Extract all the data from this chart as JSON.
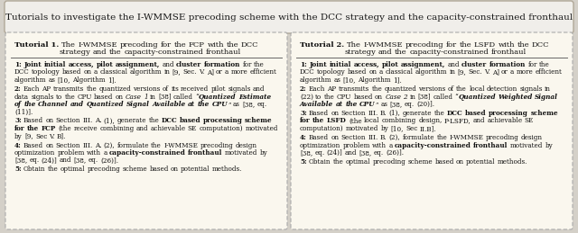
{
  "fig_bg": "#d4d0c8",
  "title_box_bg": "#f0eeea",
  "title_box_edge": "#b0a898",
  "tutorial_box_bg": "#faf7ee",
  "tutorial_box_edge": "#aaaaaa",
  "title": "Tutorials to investigate the I-WMMSE precoding scheme with the DCC strategy and the capacity-constrained fronthaul",
  "title_fontsize": 7.5,
  "header_fontsize": 6.0,
  "content_fontsize": 5.2,
  "box1_header_bold": "Tutorial 1.",
  "box1_header_rest": " The I-WMMSE precoding for the FCP with the DCC strategy and the capacity-constrained fronthaul",
  "box2_header_bold": "Tutorial 2.",
  "box2_header_rest": " The I-WMMSE precoding for the LSFD with the DCC strategy and the capacity-constrained fronthaul",
  "box1_lines": [
    [
      "b",
      "1: Joint initial access, pilot assignment,",
      "n",
      " and ",
      "b",
      "cluster formation",
      "n",
      " for the DCC topology based on a classical algorithm in [9, Sec. V. A] or a more efficient algorithm as [10, Algorithm 1]."
    ],
    [
      "b",
      "2:",
      "n",
      " Each AP transmits the quantized versions of its received pilot signals and data signals to the CPU based on ",
      "i",
      "Case 1",
      "n",
      " in [38] called “",
      "bi",
      "Quantized Estimate of the Channel and Quantized Signal Available at the CPU",
      "n",
      "” as [38, eq. (11)]."
    ],
    [
      "b",
      "3:",
      "n",
      " Based on Section III. A. (1), generate the ",
      "b",
      "DCC based processing scheme for the FCP",
      "n",
      " (the receive combining and achievable SE computation) motivated by [9, Sec V. B]."
    ],
    [
      "b",
      "4:",
      "n",
      " Based on Section III. A. (2), formulate the I-WMMSE precoding design optimization problem with a ",
      "b",
      "capacity-constrained fronthaul",
      "n",
      " motivated by [38, eq. (24)] and [38, eq. (26)]."
    ],
    [
      "b",
      "5:",
      "n",
      " Obtain the optimal precoding scheme based on potential methods."
    ]
  ],
  "box2_lines": [
    [
      "b",
      "1: Joint initial access, pilot assignment,",
      "n",
      " and ",
      "b",
      "cluster formation",
      "n",
      " for the DCC topology based on a classical algorithm in [9, Sec. V. A] or a more efficient algorithm as [10, Algorithm 1]."
    ],
    [
      "b",
      "2:",
      "n",
      " Each AP transmits the quantized versions of the local detection signals in (22) to the CPU based on ",
      "i",
      "Case 2",
      "n",
      " in [38] called “",
      "bi",
      "Quantized Weighted Signal Available at the CPU",
      "n",
      "” as [38, eq. (20)]."
    ],
    [
      "b",
      "3:",
      "n",
      " Based on Section III. B. (1), generate the ",
      "b",
      "DCC based processing scheme for the LSFD",
      "n",
      " (the local combining design, P-LSFD, and achievable SE computation) motivated by [10, Sec II.B]."
    ],
    [
      "b",
      "4:",
      "n",
      " Based on Section III. B. (2), formulate the I-WMMSE precoding design optimization problem with a ",
      "b",
      "capacity-constrained fronthaul",
      "n",
      " motivated by [38, eq. (24)] and [38, eq. (26)]."
    ],
    [
      "b",
      "5:",
      "n",
      " Obtain the optimal precoding scheme based on potential methods."
    ]
  ]
}
